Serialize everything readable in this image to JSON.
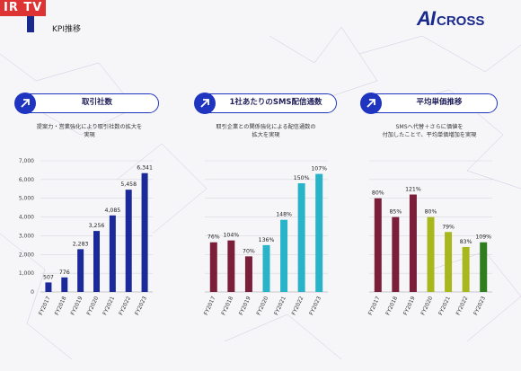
{
  "header": {
    "badge": "IR TV",
    "title": "KPI推移",
    "logo_ai": "AI",
    "logo_cross": "CROSS"
  },
  "panels": [
    {
      "title": "取引社数",
      "desc_lines": [
        "提案力・営業強化により取引社数の拡大を",
        "実現"
      ]
    },
    {
      "title": "1社あたりのSMS配信通数",
      "desc_lines": [
        "取引企業との関係強化による配信通数の",
        "拡大を実現"
      ]
    },
    {
      "title": "平均単価推移",
      "desc_lines": [
        "SMSへ代替＋さらに価値を",
        "付加したことで、平均単価増加を実現"
      ]
    }
  ],
  "chart_data": [
    {
      "type": "bar",
      "categories": [
        "FY2017",
        "FY2018",
        "FY2019",
        "FY2020",
        "FY2021",
        "FY2022",
        "FY2023"
      ],
      "values": [
        507,
        776,
        2283,
        3256,
        4085,
        5458,
        6341
      ],
      "labels": [
        "507",
        "776",
        "2,283",
        "3,256",
        "4,085",
        "5,458",
        "6,341"
      ],
      "ylim": [
        0,
        7000
      ],
      "yticks": [
        "0",
        "1,000",
        "2,000",
        "3,000",
        "4,000",
        "5,000",
        "6,000",
        "7,000"
      ],
      "colors": [
        "#1c2a99",
        "#1c2a99",
        "#1c2a99",
        "#1c2a99",
        "#1c2a99",
        "#1c2a99",
        "#1c2a99"
      ],
      "grid": true
    },
    {
      "type": "bar",
      "categories": [
        "FY2017",
        "FY2018",
        "FY2019",
        "FY2020",
        "FY2021",
        "FY2022",
        "FY2023"
      ],
      "values": [
        76,
        104,
        70,
        136,
        148,
        150,
        107
      ],
      "labels": [
        "76%",
        "104%",
        "70%",
        "136%",
        "148%",
        "150%",
        "107%"
      ],
      "bar_levels": [
        2650,
        2750,
        1900,
        2500,
        3850,
        5800,
        6300
      ],
      "colors": [
        "#7a1e3a",
        "#7a1e3a",
        "#7a1e3a",
        "#29b3c9",
        "#29b3c9",
        "#29b3c9",
        "#29b3c9"
      ],
      "grid": true
    },
    {
      "type": "bar",
      "categories": [
        "FY2017",
        "FY2018",
        "FY2019",
        "FY2020",
        "FY2021",
        "FY2022",
        "FY2023"
      ],
      "values": [
        80,
        85,
        121,
        80,
        79,
        83,
        109
      ],
      "labels": [
        "80%",
        "85%",
        "121%",
        "80%",
        "79%",
        "83%",
        "109%"
      ],
      "bar_levels": [
        5000,
        4000,
        5200,
        4000,
        3200,
        2400,
        2650
      ],
      "colors": [
        "#7a1e3a",
        "#7a1e3a",
        "#7a1e3a",
        "#a8b81c",
        "#a8b81c",
        "#a8b81c",
        "#2f7d1e"
      ],
      "grid": true
    }
  ]
}
